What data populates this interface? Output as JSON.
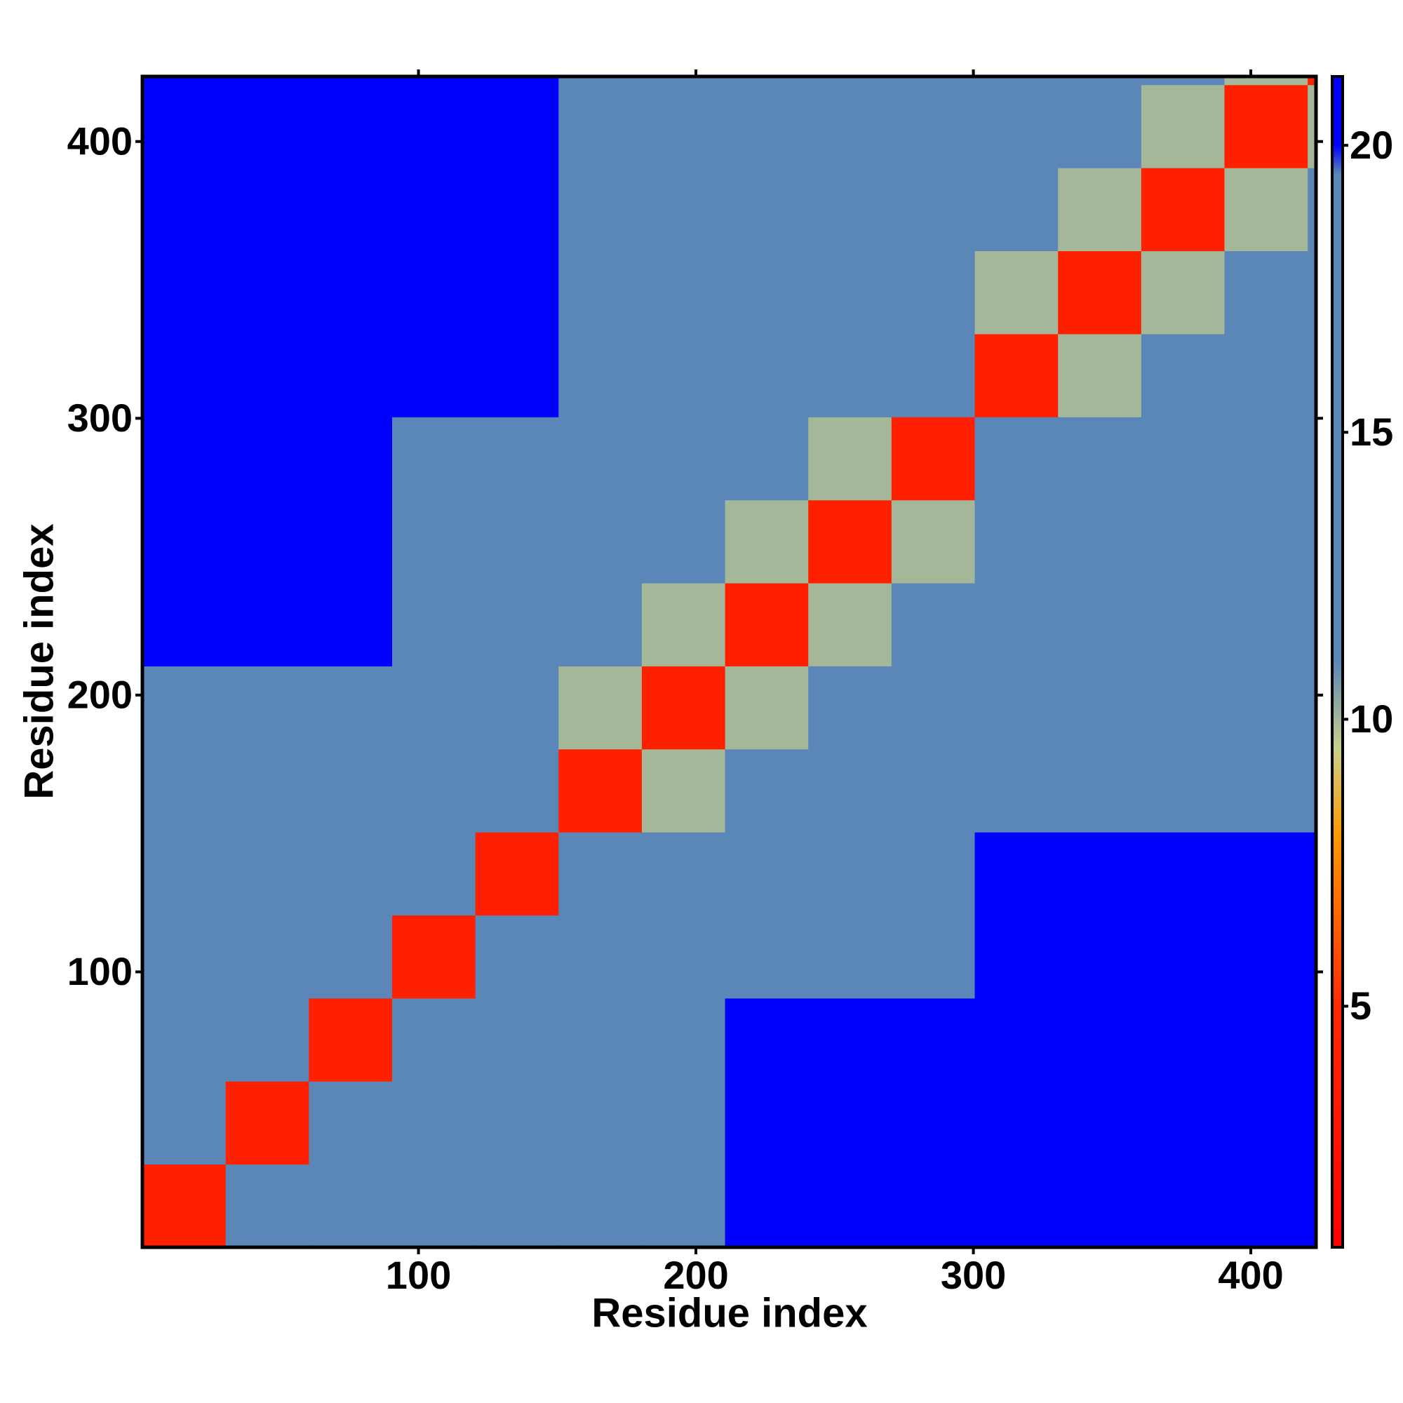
{
  "chart_data": {
    "type": "heatmap",
    "x_label": "Residue index",
    "y_label": "Residue index",
    "bins": [
      0.5,
      30.5,
      60.5,
      90.5,
      120.5,
      150.5,
      180.5,
      210.5,
      240.5,
      270.5,
      300.5,
      330.5,
      360.5,
      390.5,
      420.5,
      423.5
    ],
    "values": [
      [
        4,
        11,
        14,
        15,
        16,
        18,
        18,
        21,
        21,
        21,
        21,
        21,
        21,
        21,
        21
      ],
      [
        11,
        4,
        11,
        14,
        15,
        18,
        18,
        21,
        21,
        21,
        21,
        21,
        21,
        21,
        21
      ],
      [
        14,
        11,
        4,
        11,
        14,
        18,
        18,
        21,
        21,
        21,
        21,
        21,
        21,
        21,
        21
      ],
      [
        15,
        14,
        11,
        4,
        11,
        15,
        15,
        19,
        19,
        19,
        21,
        21,
        21,
        21,
        21
      ],
      [
        16,
        15,
        14,
        11,
        4,
        15,
        15,
        19,
        19,
        19,
        21,
        21,
        21,
        21,
        21
      ],
      [
        18,
        18,
        18,
        15,
        15,
        4,
        10,
        13,
        15,
        16,
        17,
        17,
        17,
        12,
        12
      ],
      [
        18,
        18,
        18,
        15,
        15,
        10,
        4,
        10,
        13,
        15,
        17,
        17,
        17,
        12,
        12
      ],
      [
        21,
        21,
        21,
        19,
        19,
        13,
        10,
        4,
        10,
        13,
        16,
        16,
        16,
        16,
        16
      ],
      [
        21,
        21,
        21,
        19,
        19,
        15,
        13,
        10,
        4,
        10,
        16,
        16,
        16,
        16,
        16
      ],
      [
        21,
        21,
        21,
        19,
        19,
        16,
        15,
        13,
        10,
        4,
        12,
        16,
        16,
        16,
        16
      ],
      [
        21,
        21,
        21,
        21,
        21,
        17,
        17,
        16,
        16,
        12,
        4,
        10,
        13,
        15,
        15
      ],
      [
        21,
        21,
        21,
        21,
        21,
        17,
        17,
        16,
        16,
        16,
        10,
        4,
        10,
        13,
        15
      ],
      [
        21,
        21,
        21,
        21,
        21,
        17,
        17,
        16,
        16,
        16,
        13,
        10,
        4,
        10,
        13
      ],
      [
        21,
        21,
        21,
        21,
        21,
        12,
        12,
        16,
        16,
        16,
        15,
        13,
        10,
        4,
        10
      ],
      [
        21,
        21,
        21,
        21,
        21,
        12,
        12,
        16,
        16,
        16,
        15,
        15,
        13,
        10,
        4
      ]
    ],
    "xlim": [
      0.5,
      423.5
    ],
    "ylim": [
      0.5,
      423.5
    ],
    "xticks": [
      100,
      200,
      300,
      400
    ],
    "yticks": [
      100,
      200,
      300,
      400
    ],
    "zlim": [
      0.8,
      21.2
    ],
    "zticks": [
      5,
      10,
      15,
      20
    ],
    "colorscale": [
      [
        0.8,
        "#ff0000"
      ],
      [
        5,
        "#ff2a00"
      ],
      [
        8,
        "#ff9900"
      ],
      [
        9.5,
        "#c8d08a"
      ],
      [
        11,
        "#5b86b8"
      ],
      [
        19.5,
        "#5b86b8"
      ],
      [
        20,
        "#0000ff"
      ],
      [
        21.2,
        "#0000ff"
      ]
    ]
  }
}
